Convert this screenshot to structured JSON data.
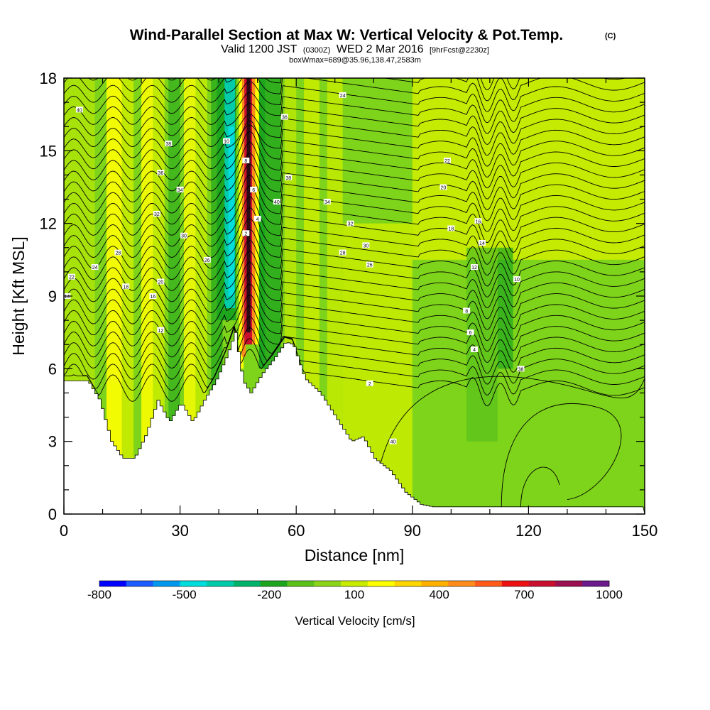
{
  "chart_data": {
    "type": "heatmap",
    "title": "Wind-Parallel Section at Max W: Vertical Velocity & Pot.Temp.",
    "title_mark": "(C)",
    "subtitle": {
      "valid": "Valid 1200 JST",
      "utc": "(0300Z)",
      "date": "WED 2 Mar 2016",
      "forecast": "[9hrFcst@2230z]"
    },
    "box_info": "boxWmax=689@35.96,138.47,2583m",
    "xlabel": "Distance [nm]",
    "ylabel": "Height [Kft MSL]",
    "xlim": [
      0,
      150
    ],
    "ylim": [
      0,
      18
    ],
    "x_ticks": [
      0,
      30,
      60,
      90,
      120,
      150
    ],
    "y_ticks": [
      0,
      3,
      6,
      9,
      12,
      15,
      18
    ],
    "colorbar": {
      "label": "Vertical Velocity [cm/s]",
      "levels": [
        -800,
        -700,
        -600,
        -500,
        -400,
        -300,
        -200,
        -100,
        0,
        100,
        200,
        300,
        400,
        500,
        600,
        700,
        800,
        900,
        1000
      ],
      "tick_labels": [
        "-800",
        "-500",
        "-200",
        "100",
        "400",
        "700",
        "1000"
      ],
      "colors": [
        "#0000ff",
        "#1a5cff",
        "#0099ee",
        "#00dddd",
        "#00ccaa",
        "#00b36b",
        "#1ea51e",
        "#5cc21a",
        "#8cd41a",
        "#c8ec00",
        "#ffff00",
        "#ffd700",
        "#ffb000",
        "#ff8c1a",
        "#ff5a1a",
        "#ee1111",
        "#c8102e",
        "#9b1050",
        "#6a1a8a"
      ]
    },
    "terrain_kft": [
      [
        0,
        5.5
      ],
      [
        6,
        5.5
      ],
      [
        9,
        4.7
      ],
      [
        12,
        3.0
      ],
      [
        15,
        2.3
      ],
      [
        18,
        2.3
      ],
      [
        21,
        3.3
      ],
      [
        24,
        4.7
      ],
      [
        27,
        3.8
      ],
      [
        30,
        4.6
      ],
      [
        33,
        3.8
      ],
      [
        36,
        4.7
      ],
      [
        39,
        5.5
      ],
      [
        42,
        6.6
      ],
      [
        44,
        7.5
      ],
      [
        46,
        5.5
      ],
      [
        48,
        5.0
      ],
      [
        51,
        5.8
      ],
      [
        54,
        6.4
      ],
      [
        57,
        7.1
      ],
      [
        59,
        7.0
      ],
      [
        62,
        5.6
      ],
      [
        66,
        5.0
      ],
      [
        70,
        4.0
      ],
      [
        74,
        3.0
      ],
      [
        77,
        3.2
      ],
      [
        80,
        2.3
      ],
      [
        84,
        1.8
      ],
      [
        88,
        0.9
      ],
      [
        92,
        0.4
      ],
      [
        95,
        0.3
      ],
      [
        150,
        0.3
      ]
    ],
    "theta_contour_labels": [
      "40",
      "38",
      "36",
      "34",
      "32",
      "30",
      "28",
      "26",
      "24",
      "22",
      "20",
      "18",
      "16",
      "14",
      "12",
      "10",
      "8",
      "6",
      "4",
      "2"
    ]
  }
}
